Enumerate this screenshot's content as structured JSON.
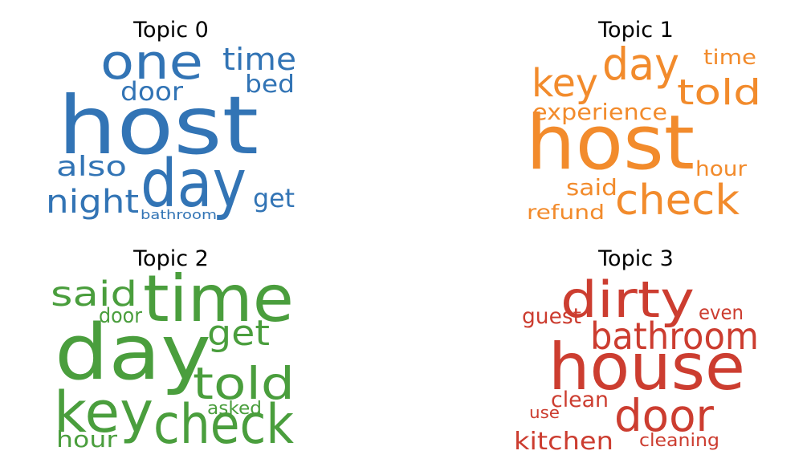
{
  "chart_data": [
    {
      "type": "wordcloud",
      "title": "Topic 0",
      "color": "#3274b5",
      "words": [
        {
          "text": "host",
          "weight": 1.0
        },
        {
          "text": "one",
          "weight": 0.55
        },
        {
          "text": "day",
          "weight": 0.78
        },
        {
          "text": "time",
          "weight": 0.36
        },
        {
          "text": "door",
          "weight": 0.3
        },
        {
          "text": "bed",
          "weight": 0.28
        },
        {
          "text": "also",
          "weight": 0.32
        },
        {
          "text": "night",
          "weight": 0.4
        },
        {
          "text": "get",
          "weight": 0.3
        },
        {
          "text": "bathroom",
          "weight": 0.16
        }
      ]
    },
    {
      "type": "wordcloud",
      "title": "Topic 1",
      "color": "#f28b2c",
      "words": [
        {
          "text": "host",
          "weight": 1.0
        },
        {
          "text": "day",
          "weight": 0.55
        },
        {
          "text": "key",
          "weight": 0.5
        },
        {
          "text": "told",
          "weight": 0.48
        },
        {
          "text": "time",
          "weight": 0.26
        },
        {
          "text": "experience",
          "weight": 0.3
        },
        {
          "text": "hour",
          "weight": 0.26
        },
        {
          "text": "said",
          "weight": 0.3
        },
        {
          "text": "check",
          "weight": 0.62
        },
        {
          "text": "refund",
          "weight": 0.27
        }
      ]
    },
    {
      "type": "wordcloud",
      "title": "Topic 2",
      "color": "#4a9e3d",
      "words": [
        {
          "text": "day",
          "weight": 1.0
        },
        {
          "text": "time",
          "weight": 0.76
        },
        {
          "text": "said",
          "weight": 0.45
        },
        {
          "text": "door",
          "weight": 0.26
        },
        {
          "text": "get",
          "weight": 0.45
        },
        {
          "text": "told",
          "weight": 0.55
        },
        {
          "text": "key",
          "weight": 0.7
        },
        {
          "text": "check",
          "weight": 0.68
        },
        {
          "text": "asked",
          "weight": 0.25
        },
        {
          "text": "hour",
          "weight": 0.3
        }
      ]
    },
    {
      "type": "wordcloud",
      "title": "Topic 3",
      "color": "#cc3d30",
      "words": [
        {
          "text": "house",
          "weight": 1.0
        },
        {
          "text": "dirty",
          "weight": 0.7
        },
        {
          "text": "bathroom",
          "weight": 0.5
        },
        {
          "text": "guest",
          "weight": 0.26
        },
        {
          "text": "even",
          "weight": 0.25
        },
        {
          "text": "door",
          "weight": 0.65
        },
        {
          "text": "clean",
          "weight": 0.26
        },
        {
          "text": "use",
          "weight": 0.2
        },
        {
          "text": "kitchen",
          "weight": 0.32
        },
        {
          "text": "cleaning",
          "weight": 0.22
        }
      ]
    }
  ]
}
